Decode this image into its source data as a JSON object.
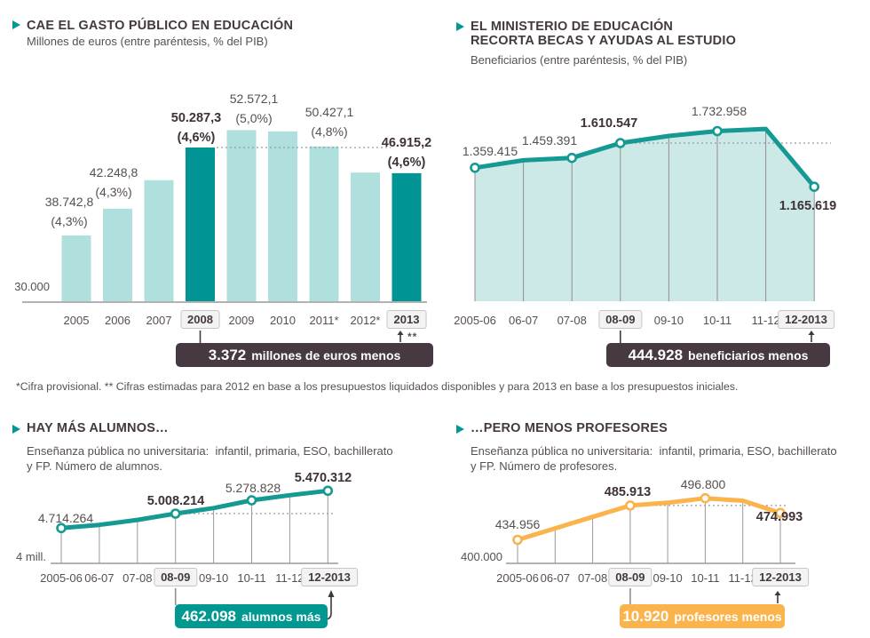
{
  "panels": [
    {
      "id": "gasto-publico",
      "title": "CAE EL GASTO PÚBLICO EN EDUCACIÓN",
      "subtitle": "Millones de euros (entre paréntesis, % del PIB)",
      "axis_base_label": "30.000",
      "badge": {
        "number": "3.372",
        "label": "millones de euros menos"
      },
      "arrow_note": "**"
    },
    {
      "id": "becas",
      "title": "EL MINISTERIO DE EDUCACIÓN",
      "title2": "RECORTA BECAS Y AYUDAS AL ESTUDIO",
      "subtitle": "Beneficiarios (entre paréntesis, % del PIB)",
      "badge": {
        "number": "444.928",
        "label": "beneficiarios menos"
      }
    },
    {
      "id": "alumnos",
      "title": "HAY MÁS ALUMNOS…",
      "subtitle": "Enseñanza pública no universitaria:  infantil, primaria, ESO, bachillerato",
      "subtitle2": "y FP. Número de alumnos.",
      "axis_base_label": "4 mill.",
      "badge": {
        "number": "462.098",
        "label": "alumnos más"
      }
    },
    {
      "id": "profesores",
      "title": "…PERO MENOS PROFESORES",
      "subtitle": "Enseñanza pública no universitaria:  infantil, primaria, ESO, bachillerato",
      "subtitle2": "y FP. Número de profesores.",
      "axis_base_label": "400.000",
      "badge": {
        "number": "10.920",
        "label": "profesores menos"
      }
    }
  ],
  "footnote": "*Cifra provisional. ** Cifras estimadas para 2012 en base a los presupuestos liquidados disponibles y para 2013 en base a los presupuestos iniciales.",
  "colors": {
    "teal_dark": "#009594",
    "teal_light": "#AFE0DE",
    "teal_line": "#149A92",
    "area_fill": "#CDE9E7",
    "orange": "#FBB34C",
    "badge_dark": "#473941",
    "badge_teal": "#009890",
    "title_text": "#433940",
    "body_text": "#57504E"
  },
  "chart_data": [
    {
      "type": "bar",
      "title": "CAE EL GASTO PÚBLICO EN EDUCACIÓN",
      "ylabel": "Millones de euros",
      "categories": [
        "2005",
        "2006",
        "2007",
        "2008",
        "2009",
        "2010",
        "2011*",
        "2012*",
        "2013"
      ],
      "values": [
        38742.8,
        42248.8,
        46000,
        50287.3,
        52572.1,
        52400,
        50427.1,
        47000,
        46915.2
      ],
      "value_labels": [
        "38.742,8",
        "42.248,8",
        null,
        "50.287,3",
        "52.572,1",
        null,
        "50.427,1",
        null,
        "46.915,2"
      ],
      "pct_labels": [
        "(4,3%)",
        "(4,3%)",
        null,
        "(4,6%)",
        "(5,0%)",
        null,
        "(4,8%)",
        null,
        "(4,6%)"
      ],
      "bold_labels": [
        false,
        false,
        false,
        true,
        false,
        false,
        false,
        false,
        true
      ],
      "highlighted_bars": [
        3,
        8
      ],
      "boxed_categories": [
        3,
        8
      ],
      "estimated_indices": [
        2,
        5,
        7
      ],
      "y_baseline_value": 30000,
      "y_baseline_label": "30.000",
      "grid": false,
      "annotation": "3.372 millones de euros menos"
    },
    {
      "type": "area",
      "title": "EL MINISTERIO DE EDUCACIÓN RECORTA BECAS Y AYUDAS AL ESTUDIO",
      "ylabel": "Beneficiarios",
      "categories": [
        "2005-06",
        "06-07",
        "07-08",
        "08-09",
        "09-10",
        "10-11",
        "11-12",
        "12-2013"
      ],
      "values": [
        1359415,
        1435000,
        1459391,
        1610547,
        1683000,
        1732958,
        1755000,
        1165619
      ],
      "value_labels": [
        "1.359.415",
        null,
        "1.459.391",
        "1.610.547",
        null,
        "1.732.958",
        null,
        "1.165.619"
      ],
      "bold_labels": [
        false,
        false,
        false,
        true,
        false,
        false,
        false,
        true
      ],
      "boxed_categories": [
        3,
        7
      ],
      "estimated_indices": [
        1,
        4,
        6
      ],
      "y_baseline_value": 0,
      "grid": true,
      "annotation": "444.928 beneficiarios menos"
    },
    {
      "type": "line",
      "title": "HAY MÁS ALUMNOS…",
      "ylabel": "Número de alumnos",
      "categories": [
        "2005-06",
        "06-07",
        "07-08",
        "08-09",
        "09-10",
        "10-11",
        "11-12",
        "12-2013"
      ],
      "values": [
        4714264,
        4780000,
        4880000,
        5008214,
        5120000,
        5278828,
        5380000,
        5470312
      ],
      "value_labels": [
        "4.714.264",
        null,
        null,
        "5.008.214",
        null,
        "5.278.828",
        null,
        "5.470.312"
      ],
      "bold_labels": [
        false,
        false,
        false,
        true,
        false,
        false,
        false,
        true
      ],
      "boxed_categories": [
        3,
        7
      ],
      "estimated_indices": [
        1,
        2,
        4,
        6
      ],
      "y_baseline_value": 4000000,
      "y_baseline_label": "4 mill.",
      "grid": true,
      "annotation": "462.098 alumnos más"
    },
    {
      "type": "line",
      "title": "…PERO MENOS PROFESORES",
      "ylabel": "Número de profesores",
      "categories": [
        "2005-06",
        "06-07",
        "07-08",
        "08-09",
        "09-10",
        "10-11",
        "11-12",
        "12-2013"
      ],
      "values": [
        434956,
        452000,
        469000,
        485913,
        490000,
        496800,
        493000,
        474993
      ],
      "value_labels": [
        "434.956",
        null,
        null,
        "485.913",
        null,
        "496.800",
        null,
        "474.993"
      ],
      "bold_labels": [
        false,
        false,
        false,
        true,
        false,
        false,
        false,
        true
      ],
      "boxed_categories": [
        3,
        7
      ],
      "estimated_indices": [
        1,
        2,
        4,
        6
      ],
      "y_baseline_value": 400000,
      "y_baseline_label": "400.000",
      "grid": true,
      "annotation": "10.920 profesores menos"
    }
  ]
}
